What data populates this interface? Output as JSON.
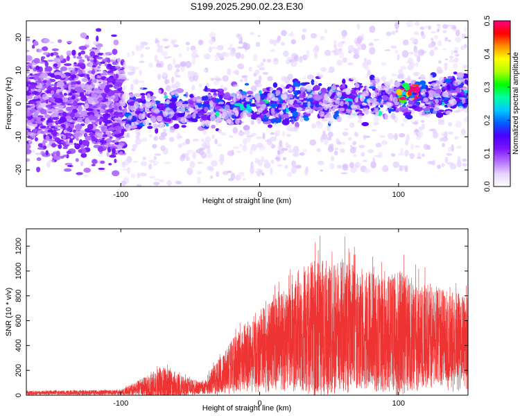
{
  "figure": {
    "title": "S199.2025.290.02.23.E30"
  },
  "chart_data": [
    {
      "type": "heatmap",
      "xlabel": "Height of straight line (km)",
      "ylabel": "Frequency (Hz)",
      "xlim": [
        -168,
        150
      ],
      "ylim": [
        -25,
        25
      ],
      "xticks": [
        -100,
        0,
        100
      ],
      "yticks": [
        -20,
        -10,
        0,
        10,
        20
      ],
      "grid": false,
      "colorbar": {
        "label": "Normalized spectral amplitude",
        "range": [
          0.0,
          0.5
        ],
        "ticks": [
          "0.0",
          "0.1",
          "0.2",
          "0.3",
          "0.4",
          "0.5"
        ],
        "colors": [
          "#ffffff",
          "#e6d2ff",
          "#b06bff",
          "#7a12ff",
          "#4a00ff",
          "#0060ff",
          "#00c8ff",
          "#00ffa0",
          "#00ff00",
          "#b0ff00",
          "#ffff00",
          "#ff9000",
          "#ff0000",
          "#ff0080"
        ]
      },
      "regions": [
        {
          "x_range": [
            -168,
            -98
          ],
          "freq_center": 0,
          "freq_halfwidth": 25,
          "typical_amplitude": 0.08
        },
        {
          "x_range": [
            -98,
            150
          ],
          "freq_center": -3,
          "freq_halfwidth": 8,
          "typical_amplitude": 0.12,
          "freq_drift_per_km": 0.025
        },
        {
          "x_range": [
            100,
            115
          ],
          "freq_center": 3,
          "freq_halfwidth": 3,
          "typical_amplitude": 0.4
        }
      ]
    },
    {
      "type": "line",
      "xlabel": "Height of straight line (km)",
      "ylabel": "SNR (10 * v/v)",
      "xlim": [
        -168,
        150
      ],
      "ylim": [
        0,
        1340
      ],
      "xticks": [
        -100,
        0,
        100
      ],
      "yticks": [
        0,
        200,
        400,
        600,
        800,
        1000,
        1200
      ],
      "grid": false,
      "series_color": "#ee3333",
      "envelope": [
        {
          "x": -168,
          "mean": 20,
          "max": 40
        },
        {
          "x": -100,
          "mean": 25,
          "max": 50
        },
        {
          "x": -85,
          "mean": 60,
          "max": 160
        },
        {
          "x": -70,
          "mean": 90,
          "max": 280
        },
        {
          "x": -55,
          "mean": 70,
          "max": 180
        },
        {
          "x": -40,
          "mean": 60,
          "max": 120
        },
        {
          "x": -30,
          "mean": 150,
          "max": 350
        },
        {
          "x": -20,
          "mean": 250,
          "max": 520
        },
        {
          "x": -10,
          "mean": 320,
          "max": 700
        },
        {
          "x": 0,
          "mean": 380,
          "max": 800
        },
        {
          "x": 10,
          "mean": 420,
          "max": 880
        },
        {
          "x": 20,
          "mean": 470,
          "max": 1000
        },
        {
          "x": 30,
          "mean": 510,
          "max": 1120
        },
        {
          "x": 40,
          "mean": 530,
          "max": 1320
        },
        {
          "x": 50,
          "mean": 540,
          "max": 1250
        },
        {
          "x": 60,
          "mean": 550,
          "max": 1300
        },
        {
          "x": 70,
          "mean": 540,
          "max": 1200
        },
        {
          "x": 80,
          "mean": 520,
          "max": 1150
        },
        {
          "x": 90,
          "mean": 510,
          "max": 1100
        },
        {
          "x": 100,
          "mean": 500,
          "max": 1200
        },
        {
          "x": 110,
          "mean": 490,
          "max": 1100
        },
        {
          "x": 120,
          "mean": 490,
          "max": 1050
        },
        {
          "x": 130,
          "mean": 480,
          "max": 1000
        },
        {
          "x": 140,
          "mean": 480,
          "max": 950
        },
        {
          "x": 150,
          "mean": 470,
          "max": 900
        }
      ]
    }
  ]
}
